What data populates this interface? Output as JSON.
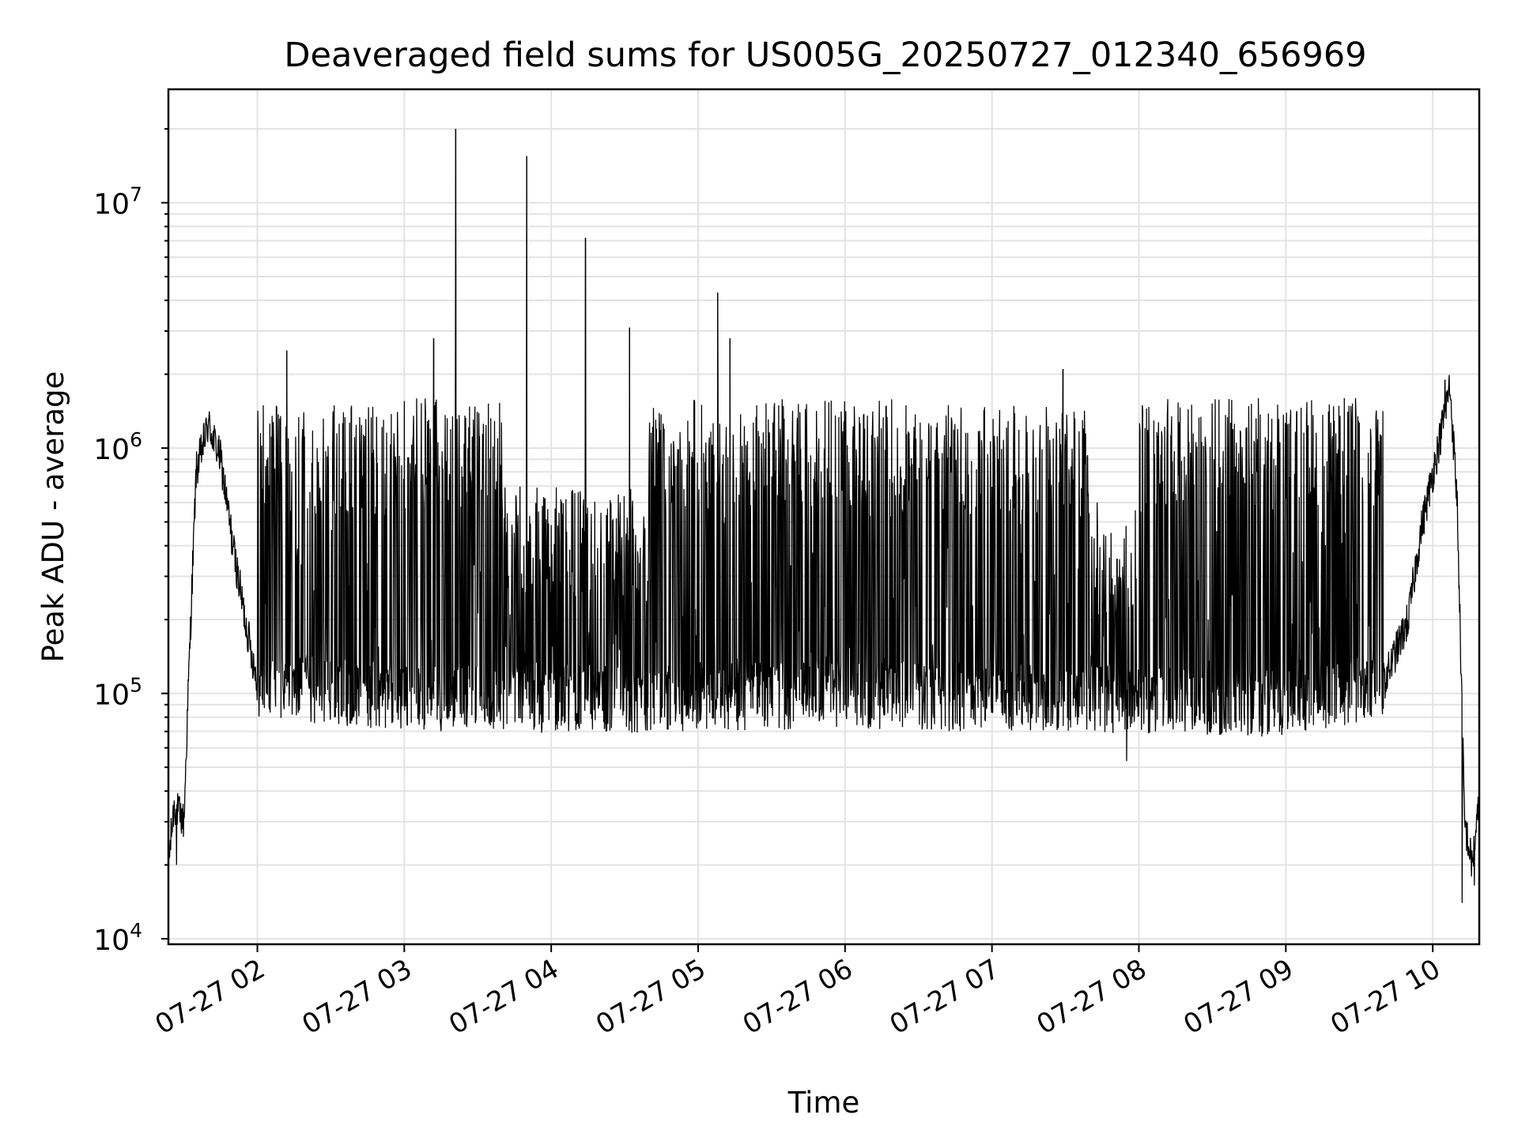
{
  "chart_data": {
    "type": "line",
    "title": "Deaveraged field sums for US005G_20250727_012340_656969",
    "xlabel": "Time",
    "ylabel": "Peak ADU - average",
    "yscale": "log",
    "xlim": [
      "2025-07-27 01:23:40",
      "2025-07-27 10:19:00"
    ],
    "ylim": [
      9500,
      29000000
    ],
    "grid": true,
    "legend": "none",
    "line_color": "#000000",
    "x_ticks": [
      {
        "label": "07-27 02",
        "x": "2025-07-27 02:00"
      },
      {
        "label": "07-27 03",
        "x": "2025-07-27 03:00"
      },
      {
        "label": "07-27 04",
        "x": "2025-07-27 04:00"
      },
      {
        "label": "07-27 05",
        "x": "2025-07-27 05:00"
      },
      {
        "label": "07-27 06",
        "x": "2025-07-27 06:00"
      },
      {
        "label": "07-27 07",
        "x": "2025-07-27 07:00"
      },
      {
        "label": "07-27 08",
        "x": "2025-07-27 08:00"
      },
      {
        "label": "07-27 09",
        "x": "2025-07-27 09:00"
      },
      {
        "label": "07-27 10",
        "x": "2025-07-27 10:00"
      }
    ],
    "y_ticks": [
      {
        "base": "10",
        "exp": "4",
        "value": 10000
      },
      {
        "base": "10",
        "exp": "5",
        "value": 100000
      },
      {
        "base": "10",
        "exp": "6",
        "value": 1000000
      },
      {
        "base": "10",
        "exp": "7",
        "value": 10000000
      }
    ],
    "baseline_envelope": [
      {
        "x": "2025-07-27 01:23:40",
        "y": 20000
      },
      {
        "x": "2025-07-27 01:26",
        "y": 35000
      },
      {
        "x": "2025-07-27 01:30",
        "y": 30000
      },
      {
        "x": "2025-07-27 01:32",
        "y": 120000
      },
      {
        "x": "2025-07-27 01:35",
        "y": 800000
      },
      {
        "x": "2025-07-27 01:40",
        "y": 1250000
      },
      {
        "x": "2025-07-27 01:45",
        "y": 900000
      },
      {
        "x": "2025-07-27 01:50",
        "y": 400000
      },
      {
        "x": "2025-07-27 01:55",
        "y": 200000
      },
      {
        "x": "2025-07-27 02:00",
        "y": 110000
      },
      {
        "x": "2025-07-27 03:00",
        "y": 95000
      },
      {
        "x": "2025-07-27 04:00",
        "y": 95000
      },
      {
        "x": "2025-07-27 05:00",
        "y": 95000
      },
      {
        "x": "2025-07-27 06:00",
        "y": 100000
      },
      {
        "x": "2025-07-27 07:00",
        "y": 95000
      },
      {
        "x": "2025-07-27 08:00",
        "y": 95000
      },
      {
        "x": "2025-07-27 09:00",
        "y": 90000
      },
      {
        "x": "2025-07-27 09:40",
        "y": 110000
      },
      {
        "x": "2025-07-27 09:50",
        "y": 200000
      },
      {
        "x": "2025-07-27 09:55",
        "y": 450000
      },
      {
        "x": "2025-07-27 10:03",
        "y": 1100000
      },
      {
        "x": "2025-07-27 10:07",
        "y": 1800000
      },
      {
        "x": "2025-07-27 10:10",
        "y": 600000
      },
      {
        "x": "2025-07-27 10:13",
        "y": 30000
      },
      {
        "x": "2025-07-27 10:16",
        "y": 20000
      },
      {
        "x": "2025-07-27 10:19",
        "y": 35000
      }
    ],
    "dense_activity_regions": [
      {
        "from": "2025-07-27 02:00",
        "to": "2025-07-27 02:55",
        "upper": 1500000,
        "lower": 75000
      },
      {
        "from": "2025-07-27 02:55",
        "to": "2025-07-27 03:40",
        "upper": 1600000,
        "lower": 80000
      },
      {
        "from": "2025-07-27 03:40",
        "to": "2025-07-27 04:40",
        "upper": 700000,
        "lower": 70000
      },
      {
        "from": "2025-07-27 04:40",
        "to": "2025-07-27 06:20",
        "upper": 1600000,
        "lower": 70000
      },
      {
        "from": "2025-07-27 06:20",
        "to": "2025-07-27 07:40",
        "upper": 1500000,
        "lower": 70000
      },
      {
        "from": "2025-07-27 07:40",
        "to": "2025-07-27 08:00",
        "upper": 600000,
        "lower": 70000
      },
      {
        "from": "2025-07-27 08:00",
        "to": "2025-07-27 09:40",
        "upper": 1600000,
        "lower": 70000
      }
    ],
    "spikes": [
      {
        "x": "2025-07-27 02:12",
        "y": 2500000
      },
      {
        "x": "2025-07-27 03:12",
        "y": 2800000
      },
      {
        "x": "2025-07-27 03:21",
        "y": 20000000
      },
      {
        "x": "2025-07-27 03:50",
        "y": 15500000
      },
      {
        "x": "2025-07-27 04:14",
        "y": 7200000
      },
      {
        "x": "2025-07-27 04:32",
        "y": 3100000
      },
      {
        "x": "2025-07-27 05:08",
        "y": 4300000
      },
      {
        "x": "2025-07-27 05:13",
        "y": 2800000
      },
      {
        "x": "2025-07-27 07:29",
        "y": 2100000
      },
      {
        "x": "2025-07-27 10:05",
        "y": 1900000
      }
    ],
    "dips": [
      {
        "x": "2025-07-27 01:27",
        "y": 20000
      },
      {
        "x": "2025-07-27 10:12",
        "y": 14000
      },
      {
        "x": "2025-07-27 10:17",
        "y": 16500
      },
      {
        "x": "2025-07-27 07:55",
        "y": 53000
      }
    ]
  }
}
